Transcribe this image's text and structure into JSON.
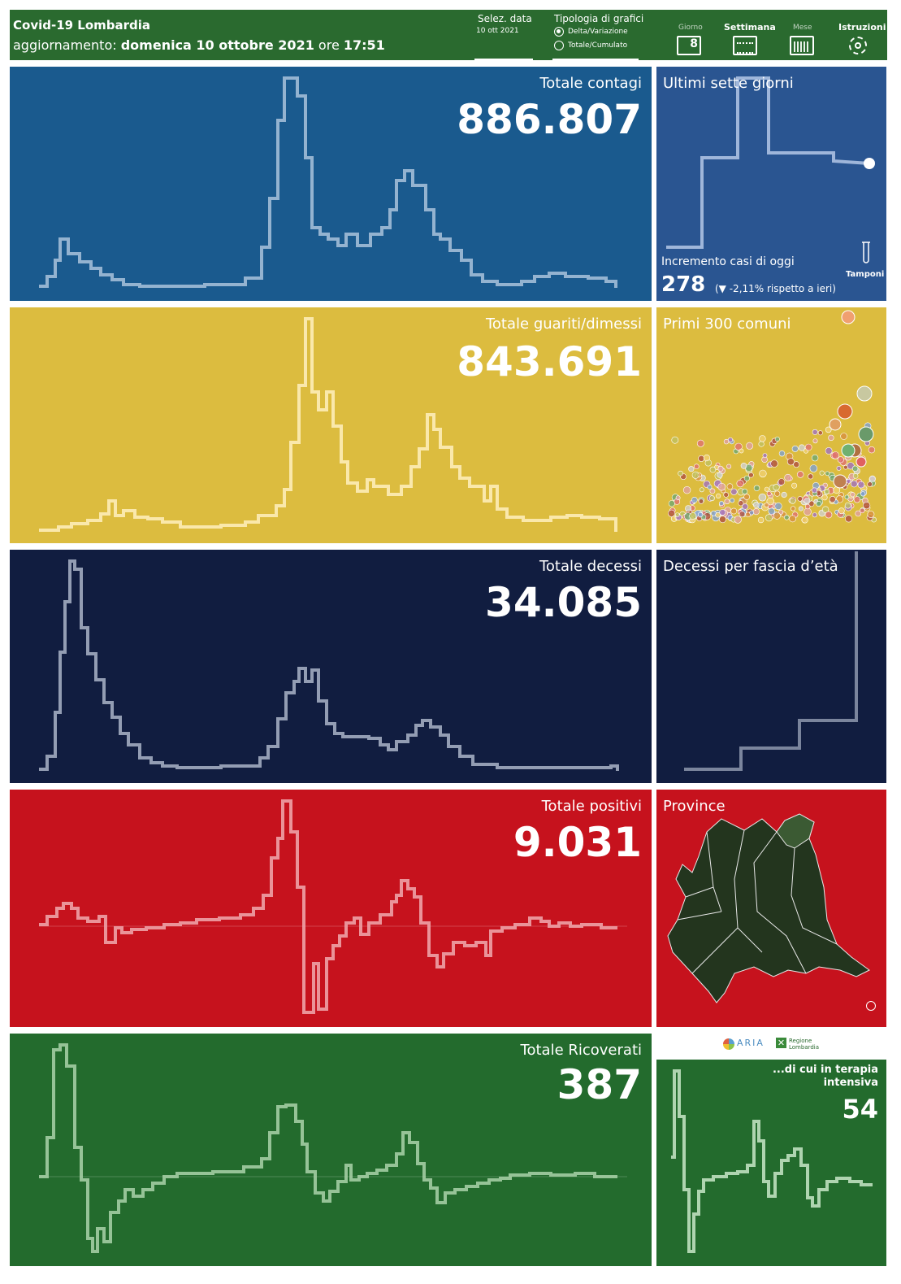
{
  "header": {
    "title": "Covid-19 Lombardia",
    "updated_prefix": "aggiornamento:",
    "updated_date": "domenica 10 ottobre 2021",
    "updated_mid": "ore",
    "updated_time": "17:51",
    "date_label": "Selez. data",
    "date_value": "10 ott 2021",
    "chart_type_label": "Tipologia di grafici",
    "option_delta": "Delta/Variazione",
    "option_cumulative": "Totale/Cumulato",
    "nav_day": "Giorno",
    "nav_day_number": "8",
    "nav_week": "Settimana",
    "nav_month": "Mese",
    "nav_instructions": "Istruzioni"
  },
  "panels": {
    "contagi": {
      "title": "Totale contagi",
      "value": "886.807",
      "color": "#1a5a8e"
    },
    "guariti": {
      "title": "Totale guariti/dimessi",
      "value": "843.691",
      "color": "#dcbc3f"
    },
    "decessi": {
      "title": "Totale decessi",
      "value": "34.085",
      "color": "#111d40"
    },
    "positivi": {
      "title": "Totale positivi",
      "value": "9.031",
      "color": "#c6121d"
    },
    "ricoverati": {
      "title": "Totale Ricoverati",
      "value": "387",
      "color": "#236b2d"
    }
  },
  "side": {
    "week": {
      "title": "Ultimi sette giorni",
      "increment_label": "Incremento casi di oggi",
      "increment_value": "278",
      "increment_delta": "(▼ -2,11% rispetto a  ieri)",
      "tamponi": "Tamponi"
    },
    "comuni": {
      "title": "Primi 300 comuni"
    },
    "age": {
      "title": "Decessi per fascia d’età"
    },
    "province": {
      "title": "Province"
    },
    "logos": {
      "aria": "ARIA",
      "regione": "Regione Lombardia"
    },
    "terapia": {
      "title": "...di cui in terapia intensiva",
      "value": "54"
    }
  },
  "colors": {
    "contagi": "#1a5a8e",
    "guariti": "#dcbc3f",
    "decessi": "#111d40",
    "positivi": "#c6121d",
    "ricoverati": "#236b2d",
    "header": "#2a6a2f"
  }
}
